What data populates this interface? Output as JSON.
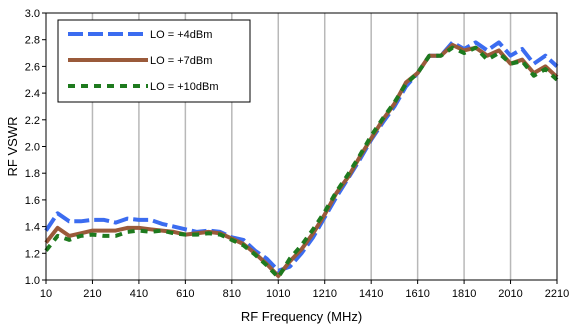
{
  "chart_data": {
    "type": "line",
    "title": "",
    "xlabel": "RF Frequency (MHz)",
    "ylabel": "RF VSWR",
    "xlim": [
      10,
      2210
    ],
    "ylim": [
      1.0,
      3.0
    ],
    "x_ticks": [
      10,
      210,
      410,
      610,
      810,
      1010,
      1210,
      1410,
      1610,
      1810,
      2010,
      2210
    ],
    "y_ticks": [
      "1.0",
      "1.2",
      "1.4",
      "1.6",
      "1.8",
      "2.0",
      "2.2",
      "2.4",
      "2.6",
      "2.8",
      "3.0"
    ],
    "grid": "vertical",
    "legend_position": "top-left",
    "series": [
      {
        "name": "LO = +4dBm",
        "color": "#3b6cf0",
        "dash": "long-dash",
        "x": [
          10,
          60,
          110,
          160,
          210,
          260,
          310,
          360,
          410,
          460,
          510,
          560,
          610,
          660,
          710,
          760,
          810,
          860,
          910,
          960,
          1010,
          1060,
          1110,
          1160,
          1210,
          1260,
          1310,
          1360,
          1410,
          1460,
          1510,
          1560,
          1610,
          1660,
          1710,
          1760,
          1810,
          1860,
          1910,
          1960,
          2010,
          2060,
          2110,
          2160,
          2210
        ],
        "values": [
          1.37,
          1.5,
          1.44,
          1.44,
          1.45,
          1.45,
          1.43,
          1.46,
          1.45,
          1.45,
          1.42,
          1.4,
          1.38,
          1.36,
          1.37,
          1.36,
          1.32,
          1.3,
          1.22,
          1.16,
          1.07,
          1.1,
          1.2,
          1.32,
          1.47,
          1.62,
          1.76,
          1.9,
          2.05,
          2.18,
          2.3,
          2.45,
          2.55,
          2.68,
          2.68,
          2.78,
          2.73,
          2.78,
          2.72,
          2.78,
          2.68,
          2.73,
          2.62,
          2.68,
          2.6
        ]
      },
      {
        "name": "LO = +7dBm",
        "color": "#9a5a3a",
        "dash": "solid",
        "x": [
          10,
          60,
          110,
          160,
          210,
          260,
          310,
          360,
          410,
          460,
          510,
          560,
          610,
          660,
          710,
          760,
          810,
          860,
          910,
          960,
          1010,
          1060,
          1110,
          1160,
          1210,
          1260,
          1310,
          1360,
          1410,
          1460,
          1510,
          1560,
          1610,
          1660,
          1710,
          1760,
          1810,
          1860,
          1910,
          1960,
          2010,
          2060,
          2110,
          2160,
          2210
        ],
        "values": [
          1.28,
          1.39,
          1.33,
          1.35,
          1.37,
          1.37,
          1.37,
          1.39,
          1.39,
          1.38,
          1.37,
          1.36,
          1.34,
          1.35,
          1.36,
          1.35,
          1.31,
          1.27,
          1.2,
          1.12,
          1.03,
          1.14,
          1.23,
          1.35,
          1.49,
          1.65,
          1.77,
          1.92,
          2.06,
          2.2,
          2.32,
          2.48,
          2.55,
          2.68,
          2.68,
          2.76,
          2.72,
          2.74,
          2.68,
          2.72,
          2.62,
          2.65,
          2.55,
          2.6,
          2.52
        ]
      },
      {
        "name": "LO = +10dBm",
        "color": "#1e7a1e",
        "dash": "short-dash",
        "x": [
          10,
          60,
          110,
          160,
          210,
          260,
          310,
          360,
          410,
          460,
          510,
          560,
          610,
          660,
          710,
          760,
          810,
          860,
          910,
          960,
          1010,
          1060,
          1110,
          1160,
          1210,
          1260,
          1310,
          1360,
          1410,
          1460,
          1510,
          1560,
          1610,
          1660,
          1710,
          1760,
          1810,
          1860,
          1910,
          1960,
          2010,
          2060,
          2110,
          2160,
          2210
        ],
        "values": [
          1.22,
          1.33,
          1.3,
          1.33,
          1.34,
          1.33,
          1.33,
          1.36,
          1.37,
          1.36,
          1.37,
          1.35,
          1.34,
          1.34,
          1.35,
          1.34,
          1.3,
          1.26,
          1.19,
          1.11,
          1.02,
          1.16,
          1.26,
          1.38,
          1.51,
          1.66,
          1.79,
          1.93,
          2.08,
          2.21,
          2.33,
          2.47,
          2.55,
          2.68,
          2.68,
          2.74,
          2.7,
          2.74,
          2.65,
          2.7,
          2.62,
          2.64,
          2.53,
          2.58,
          2.5
        ]
      }
    ]
  }
}
